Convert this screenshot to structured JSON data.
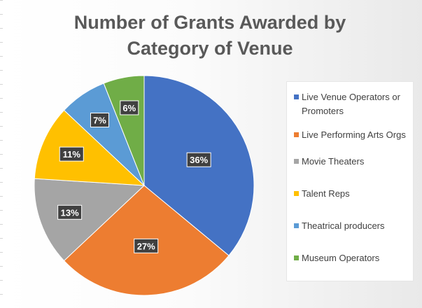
{
  "chart_data": {
    "type": "pie",
    "title_lines": [
      "Number of Grants Awarded by",
      "Category of Venue"
    ],
    "unit": "%",
    "legend_position": "right",
    "slices": [
      {
        "label": "Live Venue Operators or Promoters",
        "value": 36,
        "data_label": "36%",
        "color": "#4472C4"
      },
      {
        "label": "Live Performing Arts Orgs",
        "value": 27,
        "data_label": "27%",
        "color": "#ED7D31"
      },
      {
        "label": "Movie Theaters",
        "value": 13,
        "data_label": "13%",
        "color": "#A5A5A5"
      },
      {
        "label": "Talent Reps",
        "value": 11,
        "data_label": "11%",
        "color": "#FFC000"
      },
      {
        "label": "Theatrical producers",
        "value": 7,
        "data_label": "7%",
        "color": "#5B9BD5"
      },
      {
        "label": "Museum Operators",
        "value": 6,
        "data_label": "6%",
        "color": "#70AD47"
      }
    ]
  }
}
